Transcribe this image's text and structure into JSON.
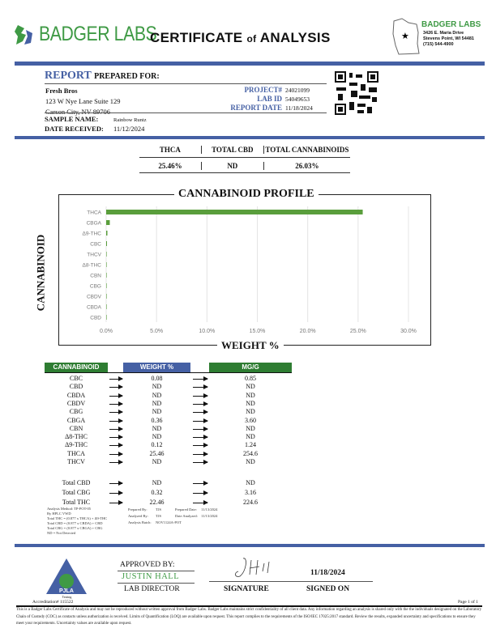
{
  "header": {
    "logo_text": "BADGER LABS",
    "title_a": "CERTIFICATE ",
    "title_of": "of",
    "title_b": " ANALYSIS",
    "lab_name": "BADGER LABS",
    "lab_address1": "3426 E. Maria Drive",
    "lab_address2": "Stevens Point, WI 54481",
    "lab_phone": "(715) 544-4900"
  },
  "report": {
    "report_word": "REPORT",
    "prepared_for": "PREPARED FOR:",
    "client": "Fresh Bros",
    "address1": "123 W Nye Lane Suite 129",
    "address2": "Carson City, NV 89706",
    "project_label": "PROJECT#",
    "project": "24021099",
    "labid_label": "LAB ID",
    "labid": "54049653",
    "date_label": "REPORT DATE",
    "date": "11/18/2024",
    "sample_label": "SAMPLE NAME:",
    "sample": "Rainbow Runtz",
    "received_label": "DATE RECEIVED:",
    "received": "11/12/2024"
  },
  "summary": {
    "headers": [
      "THCA",
      "TOTAL CBD",
      "TOTAL CANNABINOIDS"
    ],
    "values": [
      "25.46%",
      "ND",
      "26.03%"
    ]
  },
  "chart_data": {
    "type": "bar",
    "orientation": "horizontal",
    "title": "CANNABINOID PROFILE",
    "xlabel": "WEIGHT %",
    "ylabel": "CANNABINOID",
    "categories": [
      "THCA",
      "CBGA",
      "Δ9-THC",
      "CBC",
      "THCV",
      "Δ8-THC",
      "CBN",
      "CBG",
      "CBDV",
      "CBDA",
      "CBD"
    ],
    "values": [
      25.46,
      0.36,
      0.12,
      0.08,
      0,
      0,
      0,
      0,
      0,
      0,
      0
    ],
    "xlim": [
      0,
      30
    ],
    "xticks": [
      "0.0%",
      "5.0%",
      "10.0%",
      "15.0%",
      "20.0%",
      "25.0%",
      "30.0%"
    ],
    "grid": true,
    "bar_color": "#5a9e3c"
  },
  "table": {
    "headers": [
      "CANNABINOID",
      "WEIGHT %",
      "MG/G"
    ],
    "header_colors": [
      "#2e7d32",
      "#4560a4",
      "#2e7d32"
    ],
    "rows": [
      [
        "CBC",
        "0.08",
        "0.85"
      ],
      [
        "CBD",
        "ND",
        "ND"
      ],
      [
        "CBDA",
        "ND",
        "ND"
      ],
      [
        "CBDV",
        "ND",
        "ND"
      ],
      [
        "CBG",
        "ND",
        "ND"
      ],
      [
        "CBGA",
        "0.36",
        "3.60"
      ],
      [
        "CBN",
        "ND",
        "ND"
      ],
      [
        "Δ8-THC",
        "ND",
        "ND"
      ],
      [
        "Δ9-THC",
        "0.12",
        "1.24"
      ],
      [
        "THCA",
        "25.46",
        "254.6"
      ],
      [
        "THCV",
        "ND",
        "ND"
      ]
    ],
    "totals": [
      [
        "Total CBD",
        "ND",
        "ND"
      ],
      [
        "Total CBG",
        "0.32",
        "3.16"
      ],
      [
        "Total THC",
        "22.46",
        "224.6"
      ]
    ]
  },
  "notes": {
    "method": [
      "Analysis Method: TP-POT-05",
      "By HPLC VWD",
      "Total THC = (0.877 x THCA) + Δ9-THC",
      "Total CBD = (0.877 x CBDA) + CBD",
      "Total CBG = (0.877 x CBGA) + CBG",
      "ND = Not Detected"
    ],
    "prepared_by_label": "Prepared By:",
    "prepared_by": "TJS",
    "prepared_date_label": "Prepared Date:",
    "prepared_date": "11/13/2024",
    "analyzed_by_label": "Analyzed By:",
    "analyzed_by": "TJS",
    "analyzed_date_label": "Date Analyzed:",
    "analyzed_date": "11/13/2024",
    "batch_label": "Analysis Batch:",
    "batch": "NOV1124A-POT"
  },
  "signoff": {
    "pjla": "PJLA",
    "pjla_sub": "Testing",
    "accreditation": "Accreditation# 115522",
    "approved_by": "APPROVED BY:",
    "name": "JUSTIN HALL",
    "role": "LAB DIRECTOR",
    "signature_label": "SIGNATURE",
    "date": "11/18/2024",
    "signed_on": "SIGNED ON",
    "page": "Page 1 of 1"
  },
  "disclaimer": "This is a Badger Labs Certificate of Analysis and may not be reproduced without written approval from Badger Labs. Badger Labs maintains strict confidentiality of all client data. Any information regarding an analysis is shared only with the the individuals designated on the Laboratory Chain of Custody (COC) as contacts unless authorization is received. Limits of Quantification (LOQ) are available upon request. This report complies to the requirements of the ISO/IEC 17025:2017 standard. Review the results, expanded uncertainty and specifications to ensure they meet your requirements. Uncertainty values are available upon request."
}
